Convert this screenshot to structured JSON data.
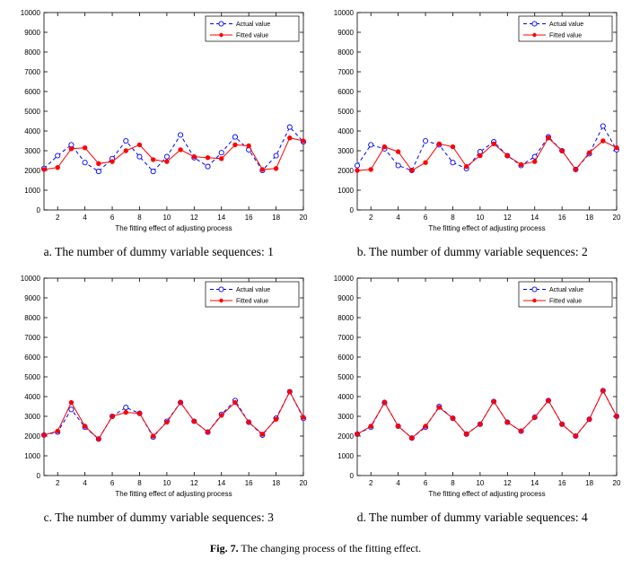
{
  "figure_caption": {
    "label": "Fig. 7.",
    "text": "The changing process of the fitting effect."
  },
  "chart_data": [
    {
      "type": "line",
      "caption": "a. The number of dummy variable sequences: 1",
      "xlabel": "The fitting effect of adjusting process",
      "x": [
        1,
        2,
        3,
        4,
        5,
        6,
        7,
        8,
        9,
        10,
        11,
        12,
        13,
        14,
        15,
        16,
        17,
        18,
        19,
        20
      ],
      "xlim": [
        1,
        20
      ],
      "ylim": [
        0,
        10000
      ],
      "ytick_step": 1000,
      "xticks": [
        2,
        4,
        6,
        8,
        10,
        12,
        14,
        16,
        18,
        20
      ],
      "grid": false,
      "legend_position": "top-right",
      "series": [
        {
          "name": "Actual value",
          "color": "#0000ff",
          "style": "dashed",
          "marker": "circle-open",
          "values": [
            2100,
            2750,
            3300,
            2400,
            1950,
            2600,
            3500,
            2700,
            1950,
            2700,
            3800,
            2650,
            2200,
            2900,
            3700,
            3050,
            2000,
            2750,
            4200,
            3450
          ]
        },
        {
          "name": "Fitted value",
          "color": "#ff0000",
          "style": "solid",
          "marker": "circle-filled",
          "values": [
            2050,
            2150,
            3100,
            3150,
            2350,
            2450,
            3000,
            3300,
            2550,
            2450,
            3050,
            2700,
            2650,
            2600,
            3300,
            3250,
            2050,
            2100,
            3650,
            3500
          ]
        }
      ]
    },
    {
      "type": "line",
      "caption": "b. The number of dummy variable sequences: 2",
      "xlabel": "The fitting effect of adjusting process",
      "x": [
        1,
        2,
        3,
        4,
        5,
        6,
        7,
        8,
        9,
        10,
        11,
        12,
        13,
        14,
        15,
        16,
        17,
        18,
        19,
        20
      ],
      "xlim": [
        1,
        20
      ],
      "ylim": [
        0,
        10000
      ],
      "ytick_step": 1000,
      "xticks": [
        2,
        4,
        6,
        8,
        10,
        12,
        14,
        16,
        18,
        20
      ],
      "grid": false,
      "legend_position": "top-right",
      "series": [
        {
          "name": "Actual value",
          "color": "#0000ff",
          "style": "dashed",
          "marker": "circle-open",
          "values": [
            2250,
            3300,
            3100,
            2250,
            2000,
            3500,
            3300,
            2400,
            2100,
            2950,
            3450,
            2750,
            2250,
            2700,
            3700,
            3000,
            2050,
            2850,
            4250,
            3050
          ]
        },
        {
          "name": "Fitted value",
          "color": "#ff0000",
          "style": "solid",
          "marker": "circle-filled",
          "values": [
            2000,
            2050,
            3200,
            2950,
            2000,
            2400,
            3350,
            3200,
            2200,
            2750,
            3350,
            2750,
            2300,
            2450,
            3650,
            3000,
            2050,
            2900,
            3500,
            3150
          ]
        }
      ]
    },
    {
      "type": "line",
      "caption": "c. The number of dummy variable sequences: 3",
      "xlabel": "The fitting effect of adjusting process",
      "x": [
        1,
        2,
        3,
        4,
        5,
        6,
        7,
        8,
        9,
        10,
        11,
        12,
        13,
        14,
        15,
        16,
        17,
        18,
        19,
        20
      ],
      "xlim": [
        1,
        20
      ],
      "ylim": [
        0,
        10000
      ],
      "ytick_step": 1000,
      "xticks": [
        2,
        4,
        6,
        8,
        10,
        12,
        14,
        16,
        18,
        20
      ],
      "grid": false,
      "legend_position": "top-right",
      "series": [
        {
          "name": "Actual value",
          "color": "#0000ff",
          "style": "dashed",
          "marker": "circle-open",
          "values": [
            2050,
            2200,
            3350,
            2450,
            1850,
            3000,
            3450,
            3150,
            1950,
            2750,
            3700,
            2750,
            2200,
            3100,
            3800,
            2700,
            2050,
            2900,
            4250,
            2900
          ]
        },
        {
          "name": "Fitted value",
          "color": "#ff0000",
          "style": "solid",
          "marker": "circle-filled",
          "values": [
            2050,
            2250,
            3700,
            2500,
            1850,
            3000,
            3200,
            3150,
            2000,
            2700,
            3700,
            2750,
            2200,
            3050,
            3700,
            2700,
            2100,
            2850,
            4250,
            2950
          ]
        }
      ]
    },
    {
      "type": "line",
      "caption": "d. The number of dummy variable sequences: 4",
      "xlabel": "The fitting effect of adjusting process",
      "x": [
        1,
        2,
        3,
        4,
        5,
        6,
        7,
        8,
        9,
        10,
        11,
        12,
        13,
        14,
        15,
        16,
        17,
        18,
        19,
        20
      ],
      "xlim": [
        1,
        20
      ],
      "ylim": [
        0,
        10000
      ],
      "ytick_step": 1000,
      "xticks": [
        2,
        4,
        6,
        8,
        10,
        12,
        14,
        16,
        18,
        20
      ],
      "grid": false,
      "legend_position": "top-right",
      "series": [
        {
          "name": "Actual value",
          "color": "#0000ff",
          "style": "dashed",
          "marker": "circle-open",
          "values": [
            2100,
            2450,
            3700,
            2500,
            1900,
            2450,
            3500,
            2900,
            2100,
            2600,
            3750,
            2700,
            2250,
            2950,
            3800,
            2600,
            2000,
            2850,
            4300,
            3000
          ]
        },
        {
          "name": "Fitted value",
          "color": "#ff0000",
          "style": "solid",
          "marker": "circle-filled",
          "values": [
            2100,
            2500,
            3700,
            2500,
            1900,
            2500,
            3450,
            2900,
            2100,
            2600,
            3750,
            2700,
            2250,
            2950,
            3800,
            2600,
            2000,
            2850,
            4300,
            3000
          ]
        }
      ]
    }
  ]
}
